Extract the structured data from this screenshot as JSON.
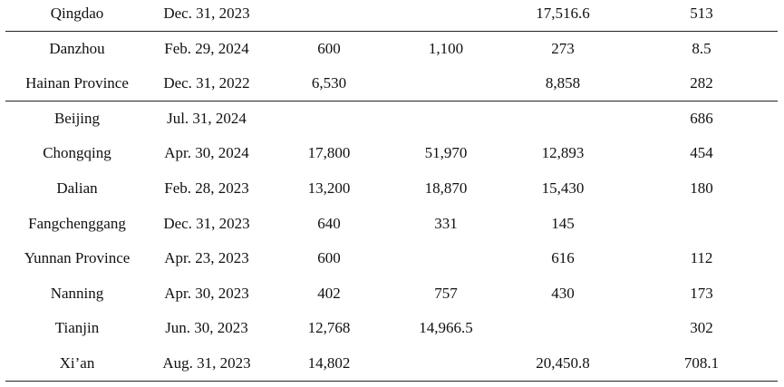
{
  "table": {
    "groups": [
      {
        "rows": [
          [
            "Qingdao",
            "Dec. 31, 2023",
            "",
            "",
            "17,516.6",
            "513"
          ]
        ]
      },
      {
        "rows": [
          [
            "Danzhou",
            "Feb. 29, 2024",
            "600",
            "1,100",
            "273",
            "8.5"
          ],
          [
            "Hainan Province",
            "Dec. 31, 2022",
            "6,530",
            "",
            "8,858",
            "282"
          ]
        ]
      },
      {
        "rows": [
          [
            "Beijing",
            "Jul. 31, 2024",
            "",
            "",
            "",
            "686"
          ],
          [
            "Chongqing",
            "Apr. 30, 2024",
            "17,800",
            "51,970",
            "12,893",
            "454"
          ],
          [
            "Dalian",
            "Feb. 28, 2023",
            "13,200",
            "18,870",
            "15,430",
            "180"
          ],
          [
            "Fangchenggang",
            "Dec. 31, 2023",
            "640",
            "331",
            "145",
            ""
          ],
          [
            "Yunnan Province",
            "Apr. 23, 2023",
            "600",
            "",
            "616",
            "112"
          ],
          [
            "Nanning",
            "Apr. 30, 2023",
            "402",
            "757",
            "430",
            "173"
          ],
          [
            "Tianjin",
            "Jun. 30, 2023",
            "12,768",
            "14,966.5",
            "",
            "302"
          ],
          [
            "Xi’an",
            "Aug. 31, 2023",
            "14,802",
            "",
            "20,450.8",
            "708.1"
          ]
        ]
      }
    ]
  }
}
